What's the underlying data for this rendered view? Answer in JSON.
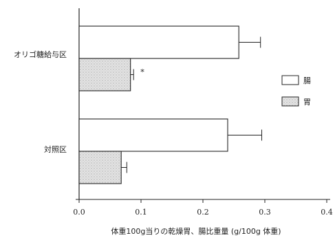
{
  "chart_data": {
    "type": "bar",
    "orientation": "horizontal",
    "categories": [
      "オリゴ糖給与区",
      "対照区"
    ],
    "series": [
      {
        "name": "腸",
        "values": [
          0.258,
          0.24
        ],
        "errors": [
          0.035,
          0.055
        ],
        "color": "#ffffff"
      },
      {
        "name": "胃",
        "values": [
          0.083,
          0.068
        ],
        "errors": [
          0.005,
          0.009
        ],
        "color": "#dcdcdc"
      }
    ],
    "annotations": [
      {
        "category": "オリゴ糖給与区",
        "series": "胃",
        "text": "*"
      }
    ],
    "xlabel": "体重100g当りの乾燥胃、腸比重量 (g/100g 体重)",
    "ticks": [
      "0.0",
      "0.1",
      "0.2",
      "0.3",
      "0.4"
    ],
    "xlim": [
      0,
      0.4
    ],
    "legend_position": "right",
    "grid": false
  }
}
